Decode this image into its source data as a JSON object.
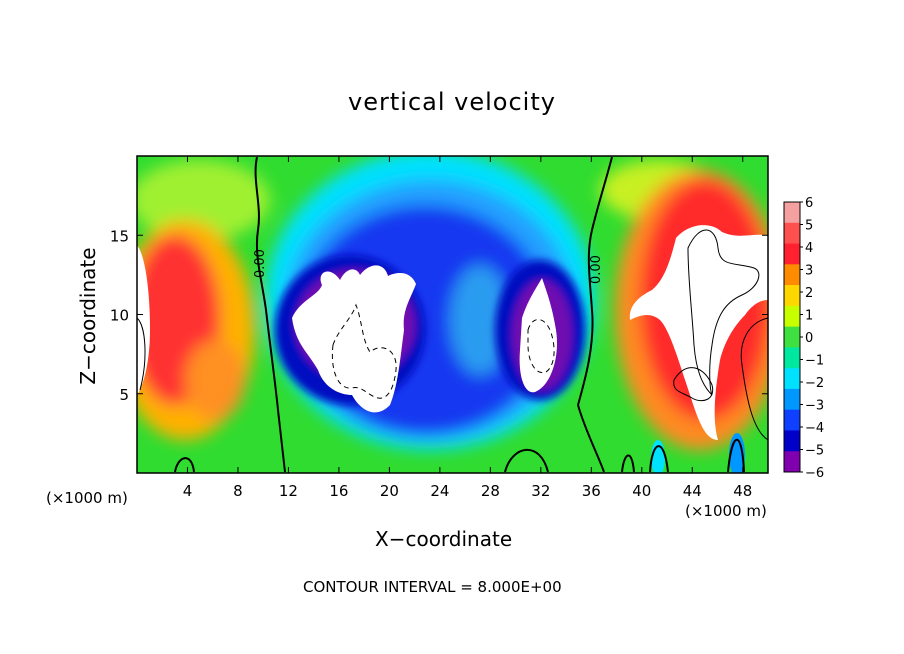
{
  "chart_data": {
    "type": "heatmap",
    "title": "vertical velocity",
    "xlabel": "X−coordinate",
    "ylabel": "Z−coordinate",
    "x_unit_left": "(×1000 m)",
    "x_unit_right": "(×1000 m)",
    "x_ticks": [
      "4",
      "8",
      "12",
      "16",
      "20",
      "24",
      "28",
      "32",
      "36",
      "40",
      "44",
      "48"
    ],
    "y_ticks": [
      "5",
      "10",
      "15"
    ],
    "xlim": [
      0,
      50
    ],
    "ylim": [
      0,
      20
    ],
    "colorbar": {
      "ticks": [
        "6",
        "5",
        "4",
        "3",
        "2",
        "1",
        "0",
        "−1",
        "−2",
        "−3",
        "−4",
        "−5",
        "−6"
      ],
      "range": [
        -6,
        6
      ],
      "colors": [
        "#f4a0a0",
        "#ff5050",
        "#ff2030",
        "#ff8c00",
        "#ffd700",
        "#c8ff00",
        "#40e040",
        "#00e8a0",
        "#00e0ff",
        "#0098ff",
        "#1040ff",
        "#0000c8",
        "#8000b0"
      ]
    },
    "contour_labels": [
      "0.00",
      "0.00"
    ],
    "footer": "CONTOUR INTERVAL = 8.000E+00"
  }
}
